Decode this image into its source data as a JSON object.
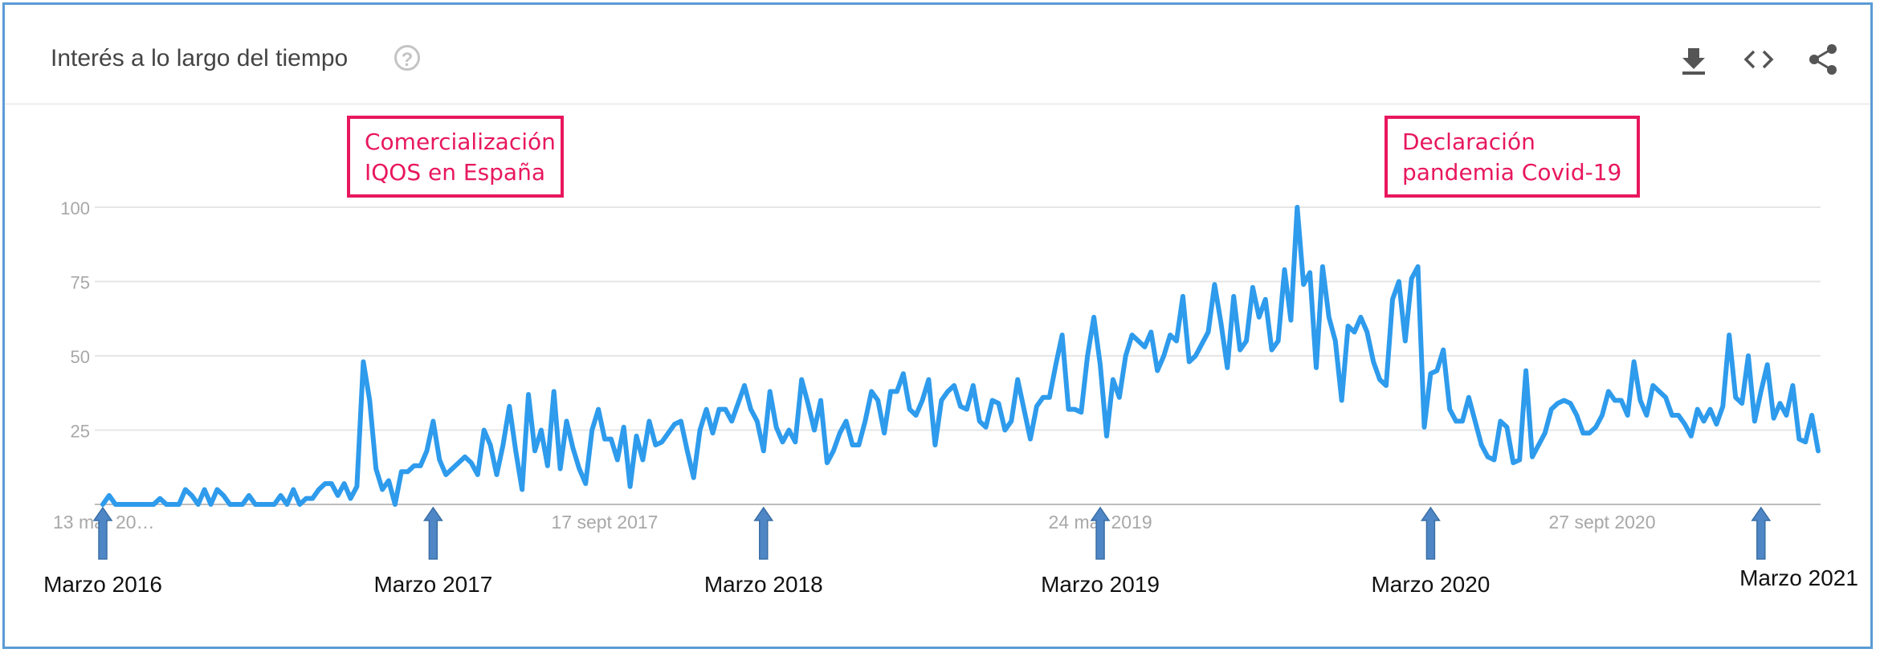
{
  "header": {
    "title": "Interés a lo largo del tiempo",
    "help_icon": "help-circle-icon",
    "actions": [
      "download-icon",
      "embed-code-icon",
      "share-icon"
    ]
  },
  "colors": {
    "line": "#2e9bec",
    "annotation_box": "#e8175d",
    "arrow": "#4f86c6",
    "frame": "#5b9bd5",
    "grid": "#e6e6e6",
    "tick_label": "#a8a8a8"
  },
  "annotations": [
    {
      "text": [
        "Comercialización",
        "IQOS en España"
      ]
    },
    {
      "text": [
        "Declaración",
        "pandemia Covid-19"
      ]
    }
  ],
  "markers": [
    {
      "label": "Marzo 2016",
      "week": 0
    },
    {
      "label": "Marzo 2017",
      "week": 52
    },
    {
      "label": "Marzo 2018",
      "week": 104
    },
    {
      "label": "Marzo 2019",
      "week": 157
    },
    {
      "label": "Marzo 2020",
      "week": 209
    },
    {
      "label": "Marzo 2021",
      "week": 261
    }
  ],
  "chart_data": {
    "type": "line",
    "title": "",
    "xlabel": "",
    "ylabel": "",
    "ylim": [
      0,
      100
    ],
    "y_ticks": [
      25,
      50,
      75,
      100
    ],
    "x_tick_labels": [
      {
        "label": "13 mar 20…",
        "week": 0
      },
      {
        "label": "17 sept 2017",
        "week": 79
      },
      {
        "label": "24 mar 2019",
        "week": 157
      },
      {
        "label": "27 sept 2020",
        "week": 236
      }
    ],
    "grid": true,
    "series": [
      {
        "values": [
          0,
          3,
          0,
          0,
          0,
          0,
          0,
          0,
          0,
          2,
          0,
          0,
          0,
          5,
          3,
          0,
          5,
          0,
          5,
          3,
          0,
          0,
          0,
          3,
          0,
          0,
          0,
          0,
          3,
          0,
          5,
          0,
          2,
          2,
          5,
          7,
          7,
          3,
          7,
          2,
          6,
          48,
          35,
          12,
          5,
          8,
          0,
          11,
          11,
          13,
          13,
          18,
          28,
          15,
          10,
          12,
          14,
          16,
          14,
          10,
          25,
          20,
          10,
          20,
          33,
          18,
          5,
          37,
          18,
          25,
          13,
          38,
          12,
          28,
          19,
          12,
          7,
          25,
          32,
          22,
          22,
          15,
          26,
          6,
          23,
          15,
          28,
          20,
          21,
          24,
          27,
          28,
          18,
          9,
          25,
          32,
          24,
          32,
          32,
          28,
          34,
          40,
          32,
          28,
          18,
          38,
          26,
          21,
          25,
          21,
          42,
          34,
          25,
          35,
          14,
          18,
          24,
          28,
          20,
          20,
          28,
          38,
          35,
          24,
          38,
          38,
          44,
          32,
          30,
          35,
          42,
          20,
          35,
          38,
          40,
          33,
          32,
          40,
          28,
          26,
          35,
          34,
          25,
          28,
          42,
          32,
          22,
          33,
          36,
          36,
          47,
          57,
          32,
          32,
          31,
          50,
          63,
          47,
          23,
          42,
          36,
          50,
          57,
          55,
          53,
          58,
          45,
          50,
          57,
          55,
          70,
          48,
          50,
          54,
          58,
          74,
          61,
          46,
          70,
          52,
          55,
          73,
          63,
          69,
          52,
          55,
          79,
          62,
          100,
          74,
          78,
          46,
          80,
          63,
          55,
          35,
          60,
          58,
          63,
          58,
          48,
          42,
          40,
          69,
          75,
          55,
          76,
          80,
          26,
          44,
          45,
          52,
          32,
          28,
          28,
          36,
          28,
          20,
          16,
          15,
          28,
          26,
          14,
          15,
          45,
          16,
          20,
          24,
          32,
          34,
          35,
          34,
          30,
          24,
          24,
          26,
          30,
          38,
          35,
          35,
          30,
          48,
          35,
          30,
          40,
          38,
          36,
          30,
          30,
          27,
          23,
          32,
          28,
          32,
          27,
          33,
          57,
          36,
          34,
          50,
          28,
          38,
          47,
          29,
          34,
          30,
          40,
          22,
          21,
          30,
          18
        ]
      }
    ]
  }
}
